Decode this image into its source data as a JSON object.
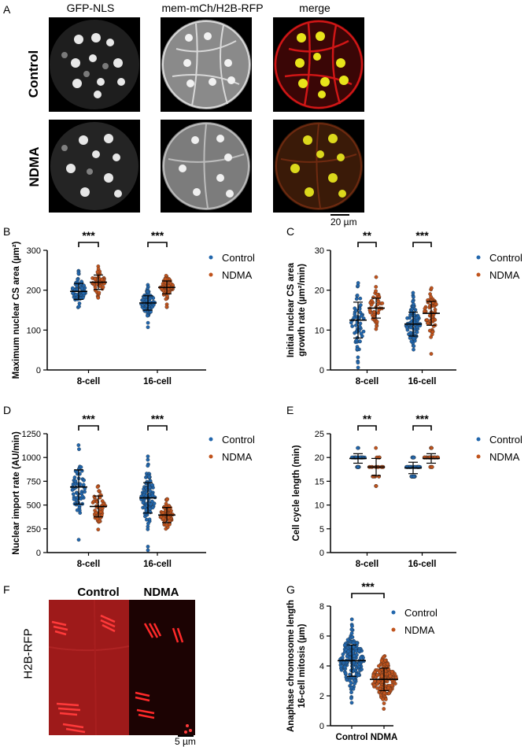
{
  "panel_letters": [
    "A",
    "B",
    "C",
    "D",
    "E",
    "F",
    "G"
  ],
  "panelA": {
    "columns": [
      "GFP-NLS",
      "mem-mCh/H2B-RFP",
      "merge"
    ],
    "rows": [
      "Control",
      "NDMA"
    ],
    "scale_bar": "20 µm"
  },
  "panelF": {
    "columns": [
      "Control",
      "NDMA"
    ],
    "ylabel": "H2B-RFP",
    "scale_bar": "5 µm"
  },
  "colors": {
    "control": "#2166ac",
    "ndma": "#c0531c",
    "axis": "#000000"
  },
  "legend": {
    "control": "Control",
    "ndma": "NDMA"
  },
  "chart_data": [
    {
      "id": "B",
      "type": "scatter",
      "ylabel": "Maximum nuclear CS area (µm²)",
      "ylim": [
        0,
        300
      ],
      "yticks": [
        0,
        100,
        200,
        300
      ],
      "categories": [
        "8-cell",
        "16-cell"
      ],
      "series": [
        {
          "name": "Control",
          "center": [
            197,
            168
          ],
          "sd": [
            20,
            18
          ],
          "n": [
            60,
            90
          ]
        },
        {
          "name": "NDMA",
          "center": [
            220,
            207
          ],
          "sd": [
            18,
            16
          ],
          "n": [
            45,
            70
          ]
        }
      ],
      "significance": [
        "***",
        "***"
      ]
    },
    {
      "id": "C",
      "type": "scatter",
      "ylabel": "Initial nuclear CS area growth rate (µm²/min)",
      "ylim": [
        0,
        30
      ],
      "yticks": [
        0,
        10,
        20,
        30
      ],
      "categories": [
        "8-cell",
        "16-cell"
      ],
      "series": [
        {
          "name": "Control",
          "center": [
            12.5,
            11.5
          ],
          "sd": [
            4.5,
            3.0
          ],
          "n": [
            55,
            90
          ]
        },
        {
          "name": "NDMA",
          "center": [
            15.5,
            14.2
          ],
          "sd": [
            2.5,
            3.0
          ],
          "n": [
            45,
            60
          ]
        }
      ],
      "significance": [
        "**",
        "***"
      ]
    },
    {
      "id": "D",
      "type": "scatter",
      "ylabel": "Nuclear import rate (AU/min)",
      "ylim": [
        0,
        1250
      ],
      "yticks": [
        0,
        250,
        500,
        750,
        1000,
        1250
      ],
      "categories": [
        "8-cell",
        "16-cell"
      ],
      "series": [
        {
          "name": "Control",
          "center": [
            690,
            575
          ],
          "sd": [
            180,
            160
          ],
          "n": [
            60,
            95
          ]
        },
        {
          "name": "NDMA",
          "center": [
            485,
            395
          ],
          "sd": [
            110,
            80
          ],
          "n": [
            45,
            70
          ]
        }
      ],
      "significance": [
        "***",
        "***"
      ]
    },
    {
      "id": "E",
      "type": "scatter",
      "ylabel": "Cell cycle length (min)",
      "ylim": [
        0,
        25
      ],
      "yticks": [
        0,
        5,
        10,
        15,
        20,
        25
      ],
      "categories": [
        "8-cell",
        "16-cell"
      ],
      "series": [
        {
          "name": "Control",
          "center": [
            19.8,
            17.8
          ],
          "sd": [
            1.0,
            1.2
          ],
          "n": [
            45,
            70
          ]
        },
        {
          "name": "NDMA",
          "center": [
            18.0,
            19.8
          ],
          "sd": [
            1.8,
            1.0
          ],
          "n": [
            35,
            50
          ]
        }
      ],
      "significance": [
        "**",
        "***"
      ]
    },
    {
      "id": "G",
      "type": "scatter",
      "ylabel": "Anaphase chromosome length 16-cell mitosis (µm)",
      "ylim": [
        0,
        8
      ],
      "yticks": [
        0,
        2,
        4,
        6,
        8
      ],
      "categories": [
        "Control",
        "NDMA"
      ],
      "series": [
        {
          "name": "Control",
          "center": [
            4.35
          ],
          "sd": [
            1.05
          ],
          "n": [
            180
          ]
        },
        {
          "name": "NDMA",
          "center": [
            3.1
          ],
          "sd": [
            0.75
          ],
          "n": [
            190
          ]
        }
      ],
      "significance": [
        "***"
      ]
    }
  ]
}
